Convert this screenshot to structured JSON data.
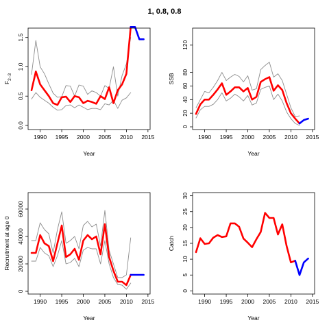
{
  "figure_title": "1, 0.8, 0.8",
  "colors": {
    "ci": "#8c8c8c",
    "estimate": "#ff0000",
    "projection": "#0000ff",
    "frame": "#000000"
  },
  "chart_data": [
    {
      "id": "f",
      "type": "line",
      "xlabel": "Year",
      "ylabel": "F",
      "ylabel_sub": "2–3",
      "xlim": [
        1987.2,
        2015.5
      ],
      "ylim": [
        -0.07,
        1.66
      ],
      "xticks": [
        1990,
        1995,
        2000,
        2005,
        2010,
        2015
      ],
      "yticks": [
        0.0,
        0.5,
        1.0,
        1.5
      ],
      "ytick_labels": [
        "0.0",
        "0.5",
        "1.0",
        "1.5"
      ],
      "series": [
        {
          "role": "lower",
          "x": [
            1988,
            1989,
            1990,
            1991,
            1992,
            1993,
            1994,
            1995,
            1996,
            1997,
            1998,
            1999,
            2000,
            2001,
            2002,
            2003,
            2004,
            2005,
            2006,
            2007,
            2008,
            2009,
            2010,
            2011
          ],
          "y": [
            0.45,
            0.56,
            0.48,
            0.43,
            0.38,
            0.31,
            0.26,
            0.27,
            0.34,
            0.35,
            0.3,
            0.35,
            0.31,
            0.27,
            0.29,
            0.29,
            0.27,
            0.37,
            0.35,
            0.43,
            0.29,
            0.43,
            0.47,
            0.56
          ]
        },
        {
          "role": "upper",
          "x": [
            1988,
            1989,
            1990,
            1991,
            1992,
            1993,
            1994,
            1995,
            1996,
            1997,
            1998,
            1999,
            2000,
            2001,
            2002,
            2003,
            2004,
            2005,
            2006,
            2007,
            2008,
            2009,
            2010,
            2011
          ],
          "y": [
            0.87,
            1.45,
            1.0,
            0.88,
            0.71,
            0.55,
            0.48,
            0.49,
            0.68,
            0.67,
            0.5,
            0.69,
            0.67,
            0.53,
            0.59,
            0.56,
            0.5,
            0.68,
            0.63,
            1.0,
            0.5,
            0.85,
            1.05,
            1.5
          ]
        },
        {
          "role": "estimate",
          "x": [
            1988,
            1989,
            1990,
            1991,
            1992,
            1993,
            1994,
            1995,
            1996,
            1997,
            1998,
            1999,
            2000,
            2001,
            2002,
            2003,
            2004,
            2005,
            2006,
            2007,
            2008,
            2009,
            2010,
            2011
          ],
          "y": [
            0.6,
            0.92,
            0.7,
            0.6,
            0.5,
            0.38,
            0.35,
            0.48,
            0.49,
            0.4,
            0.5,
            0.48,
            0.38,
            0.42,
            0.4,
            0.37,
            0.5,
            0.45,
            0.65,
            0.38,
            0.6,
            0.7,
            0.88,
            1.68
          ]
        },
        {
          "role": "projection",
          "x": [
            2011,
            2012,
            2013,
            2014
          ],
          "y": [
            1.68,
            1.68,
            1.47,
            1.47
          ]
        }
      ]
    },
    {
      "id": "ssb",
      "type": "line",
      "xlabel": "Year",
      "ylabel": "SSB",
      "xlim": [
        1987.2,
        2015.5
      ],
      "ylim": [
        -4,
        145
      ],
      "xticks": [
        1990,
        1995,
        2000,
        2005,
        2010,
        2015
      ],
      "yticks": [
        0,
        20,
        40,
        60,
        80,
        120
      ],
      "ytick_labels": [
        "0",
        "20",
        "40",
        "60",
        "80",
        "120"
      ],
      "series": [
        {
          "role": "lower",
          "x": [
            1988,
            1989,
            1990,
            1991,
            1992,
            1993,
            1994,
            1995,
            1996,
            1997,
            1998,
            1999,
            2000,
            2001,
            2002,
            2003,
            2004,
            2005,
            2006,
            2007,
            2008,
            2009,
            2010,
            2011,
            2012
          ],
          "y": [
            13,
            25,
            30,
            30,
            33,
            40,
            50,
            38,
            42,
            48,
            44,
            38,
            46,
            32,
            35,
            55,
            58,
            60,
            40,
            48,
            38,
            22,
            12,
            5,
            2
          ]
        },
        {
          "role": "upper",
          "x": [
            1988,
            1989,
            1990,
            1991,
            1992,
            1993,
            1994,
            1995,
            1996,
            1997,
            1998,
            1999,
            2000,
            2001,
            2002,
            2003,
            2004,
            2005,
            2006,
            2007,
            2008,
            2009,
            2010,
            2011,
            2012
          ],
          "y": [
            28,
            40,
            52,
            50,
            58,
            68,
            80,
            68,
            73,
            77,
            74,
            66,
            75,
            54,
            56,
            84,
            90,
            95,
            73,
            78,
            68,
            48,
            28,
            15,
            16
          ]
        },
        {
          "role": "estimate",
          "x": [
            1988,
            1989,
            1990,
            1991,
            1992,
            1993,
            1994,
            1995,
            1996,
            1997,
            1998,
            1999,
            2000,
            2001,
            2002,
            2003,
            2004,
            2005,
            2006,
            2007,
            2008,
            2009,
            2010,
            2011,
            2012
          ],
          "y": [
            19,
            33,
            40,
            40,
            47,
            55,
            64,
            47,
            52,
            58,
            58,
            52,
            57,
            40,
            44,
            66,
            70,
            73,
            53,
            61,
            54,
            35,
            20,
            12,
            5
          ]
        },
        {
          "role": "projection",
          "x": [
            2012,
            2013,
            2014
          ],
          "y": [
            5,
            10,
            12
          ]
        }
      ]
    },
    {
      "id": "rec",
      "type": "line",
      "xlabel": "Year",
      "ylabel": "Recruitment at age 0",
      "xlim": [
        1987.2,
        2015.5
      ],
      "ylim": [
        -2000,
        72000
      ],
      "xticks": [
        1990,
        1995,
        2000,
        2005,
        2010,
        2015
      ],
      "yticks": [
        0,
        20000,
        40000,
        60000
      ],
      "ytick_labels": [
        "0",
        "20000",
        "40000",
        "60000"
      ],
      "series": [
        {
          "role": "lower",
          "x": [
            1988,
            1989,
            1990,
            1991,
            1992,
            1993,
            1994,
            1995,
            1996,
            1997,
            1998,
            1999,
            2000,
            2001,
            2002,
            2003,
            2004,
            2005,
            2006,
            2007,
            2008,
            2009,
            2010,
            2011
          ],
          "y": [
            22000,
            22000,
            32000,
            28000,
            26000,
            18000,
            26000,
            37000,
            20000,
            21000,
            24000,
            18000,
            30000,
            32000,
            31000,
            31000,
            20000,
            37000,
            20000,
            10000,
            5000,
            4500,
            1500,
            6000
          ]
        },
        {
          "role": "upper",
          "x": [
            1988,
            1989,
            1990,
            1991,
            1992,
            1993,
            1994,
            1995,
            1996,
            1997,
            1998,
            1999,
            2000,
            2001,
            2002,
            2003,
            2004,
            2005,
            2006,
            2007,
            2008,
            2009,
            2010,
            2011
          ],
          "y": [
            37000,
            37000,
            50000,
            45000,
            42000,
            28000,
            45000,
            58000,
            35000,
            37000,
            40000,
            31000,
            48000,
            51000,
            47000,
            49000,
            33000,
            59000,
            30000,
            20000,
            10000,
            10000,
            12000,
            39000
          ]
        },
        {
          "role": "estimate",
          "x": [
            1988,
            1989,
            1990,
            1991,
            1992,
            1993,
            1994,
            1995,
            1996,
            1997,
            1998,
            1999,
            2000,
            2001,
            2002,
            2003,
            2004,
            2005,
            2006,
            2007,
            2008,
            2009,
            2010,
            2011
          ],
          "y": [
            28000,
            28000,
            41000,
            35000,
            33000,
            22000,
            35000,
            48000,
            25000,
            27000,
            31000,
            23000,
            37000,
            41000,
            38000,
            40000,
            27000,
            49000,
            25000,
            15000,
            7000,
            7000,
            4500,
            12000
          ]
        },
        {
          "role": "projection",
          "x": [
            2011,
            2012,
            2013,
            2014
          ],
          "y": [
            12000,
            12000,
            12000,
            12000
          ]
        }
      ]
    },
    {
      "id": "catch",
      "type": "line",
      "xlabel": "Year",
      "ylabel": "Catch",
      "xlim": [
        1987.2,
        2015.5
      ],
      "ylim": [
        -1,
        31
      ],
      "xticks": [
        1990,
        1995,
        2000,
        2005,
        2010,
        2015
      ],
      "yticks": [
        0,
        5,
        10,
        15,
        20,
        25,
        30
      ],
      "ytick_labels": [
        "0",
        "5",
        "10",
        "15",
        "20",
        "25",
        "30"
      ],
      "series": [
        {
          "role": "estimate",
          "x": [
            1988,
            1989,
            1990,
            1991,
            1992,
            1993,
            1994,
            1995,
            1996,
            1997,
            1998,
            1999,
            2000,
            2001,
            2002,
            2003,
            2004,
            2005,
            2006,
            2007,
            2008,
            2009,
            2010,
            2011
          ],
          "y": [
            12.2,
            16.6,
            14.8,
            15.0,
            16.8,
            17.6,
            17.0,
            17.2,
            21.3,
            21.3,
            20.2,
            16.5,
            15.2,
            13.8,
            16.3,
            18.6,
            24.6,
            23.0,
            23.0,
            17.8,
            21.0,
            14.2,
            9.0,
            9.5
          ]
        },
        {
          "role": "projection",
          "x": [
            2011,
            2012,
            2013,
            2014
          ],
          "y": [
            9.5,
            5.0,
            9.0,
            10.2
          ]
        }
      ]
    }
  ]
}
